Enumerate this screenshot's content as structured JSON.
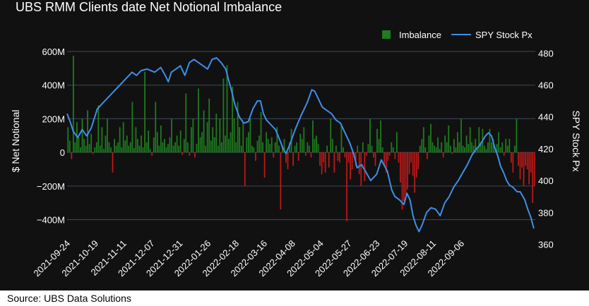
{
  "title": "UBS RMM Clients date Net Notional Imbalance",
  "source": "Source: UBS Data Solutions",
  "colors": {
    "background": "#111111",
    "grid": "#3c4a5c",
    "imbalance_pos": "#1e7d1e",
    "imbalance_neg": "#c01818",
    "spy": "#3d8fe8",
    "text": "#ffffff"
  },
  "chart_data": {
    "type": "bar",
    "xlabel": "",
    "ylabel": "$ Net Notional",
    "y2label": "SPY Stock Px",
    "ylim": [
      -490,
      600
    ],
    "y2lim": [
      366,
      481
    ],
    "yticks": [
      {
        "v": 600,
        "label": "600M"
      },
      {
        "v": 400,
        "label": "400M"
      },
      {
        "v": 200,
        "label": "200M"
      },
      {
        "v": 0,
        "label": "0"
      },
      {
        "v": -200,
        "label": "−200M"
      },
      {
        "v": -400,
        "label": "−400M"
      }
    ],
    "y2ticks": [
      480,
      460,
      440,
      420,
      400,
      380,
      360
    ],
    "xtick_labels": [
      "2021-09-24",
      "2021-10-19",
      "2021-11-11",
      "2021-12-07",
      "2021-12-31",
      "2022-01-26",
      "2022-02-18",
      "2022-03-16",
      "2022-04-08",
      "2022-05-04",
      "2022-05-27",
      "2022-06-23",
      "2022-07-19",
      "2022-08-11",
      "2022-09-06"
    ],
    "legend": {
      "position": "top-right",
      "entries": [
        "Imbalance",
        "SPY Stock Px"
      ]
    },
    "grid": true,
    "series": [
      {
        "name": "Imbalance",
        "type": "bar",
        "values": [
          150,
          70,
          -40,
          575,
          60,
          180,
          90,
          30,
          200,
          80,
          40,
          250,
          50,
          110,
          -10,
          30,
          60,
          280,
          40,
          150,
          20,
          100,
          200,
          60,
          30,
          -120,
          80,
          40,
          60,
          150,
          30,
          180,
          70,
          100,
          40,
          60,
          300,
          25,
          150,
          80,
          40,
          100,
          30,
          480,
          60,
          130,
          20,
          -20,
          90,
          300,
          120,
          40,
          160,
          60,
          80,
          30,
          50,
          90,
          200,
          40,
          60,
          100,
          40,
          130,
          -15,
          80,
          350,
          60,
          -20,
          150,
          200,
          -30,
          50,
          380,
          90,
          120,
          250,
          40,
          180,
          320,
          70,
          150,
          90,
          230,
          40,
          200,
          60,
          440,
          100,
          520,
          80,
          120,
          390,
          200,
          60,
          300,
          150,
          40,
          180,
          -200,
          90,
          120,
          200,
          40,
          30,
          -50,
          70,
          100,
          240,
          60,
          -150,
          120,
          80,
          50,
          90,
          -30,
          60,
          150,
          40,
          -340,
          30,
          80,
          -60,
          -100,
          60,
          140,
          -80,
          40,
          60,
          -50,
          110,
          80,
          150,
          -20,
          60,
          40,
          -30,
          190,
          80,
          100,
          50,
          -80,
          -130,
          -60,
          -120,
          40,
          -90,
          200,
          80,
          -120,
          40,
          -50,
          -60,
          170,
          30,
          -30,
          -410,
          -60,
          -160,
          -100,
          -30,
          -80,
          40,
          -130,
          -200,
          60,
          -170,
          -20,
          50,
          200,
          40,
          -30,
          -80,
          140,
          80,
          190,
          30,
          -80,
          -120,
          -50,
          -20,
          60,
          30,
          -40,
          120,
          -60,
          -180,
          -340,
          -290,
          -250,
          -220,
          -130,
          -60,
          -140,
          -240,
          -150,
          -100,
          40,
          80,
          150,
          30,
          -40,
          100,
          170,
          60,
          40,
          30,
          90,
          20,
          60,
          -30,
          100,
          60,
          160,
          40,
          -10,
          80,
          30,
          120,
          60,
          200,
          40,
          30,
          100,
          50,
          150,
          60,
          40,
          80,
          30,
          150,
          60,
          140,
          40,
          20,
          60,
          140,
          60,
          80,
          30,
          50,
          120,
          30,
          60,
          -20,
          80,
          40,
          80,
          -60,
          -120,
          40,
          200,
          -80,
          -160,
          -90,
          -200,
          -80,
          -100,
          -190,
          -120,
          -300,
          -200
        ]
      },
      {
        "name": "SPY Stock Px",
        "type": "line",
        "x_start": "2021-09-24",
        "x_end": "2022-09-30",
        "points": [
          [
            0,
            442
          ],
          [
            2,
            437
          ],
          [
            4,
            431
          ],
          [
            7,
            427
          ],
          [
            10,
            432
          ],
          [
            13,
            428
          ],
          [
            16,
            433
          ],
          [
            20,
            445
          ],
          [
            24,
            449
          ],
          [
            28,
            453
          ],
          [
            33,
            458
          ],
          [
            38,
            463
          ],
          [
            43,
            468
          ],
          [
            46,
            466
          ],
          [
            49,
            469
          ],
          [
            53,
            470
          ],
          [
            58,
            468
          ],
          [
            62,
            471
          ],
          [
            65,
            466
          ],
          [
            67,
            462
          ],
          [
            69,
            468
          ],
          [
            72,
            470
          ],
          [
            75,
            472
          ],
          [
            78,
            466
          ],
          [
            81,
            474
          ],
          [
            84,
            476
          ],
          [
            87,
            474
          ],
          [
            90,
            472
          ],
          [
            93,
            470
          ],
          [
            96,
            476
          ],
          [
            99,
            477
          ],
          [
            102,
            474
          ],
          [
            105,
            470
          ],
          [
            107,
            463
          ],
          [
            109,
            456
          ],
          [
            111,
            448
          ],
          [
            114,
            440
          ],
          [
            117,
            436
          ],
          [
            120,
            437
          ],
          [
            123,
            445
          ],
          [
            126,
            450
          ],
          [
            128,
            450
          ],
          [
            130,
            442
          ],
          [
            132,
            438
          ],
          [
            135,
            435
          ],
          [
            138,
            432
          ],
          [
            141,
            425
          ],
          [
            143,
            420
          ],
          [
            145,
            417
          ],
          [
            148,
            424
          ],
          [
            151,
            432
          ],
          [
            155,
            441
          ],
          [
            159,
            449
          ],
          [
            162,
            457
          ],
          [
            164,
            456
          ],
          [
            166,
            452
          ],
          [
            169,
            446
          ],
          [
            172,
            444
          ],
          [
            175,
            442
          ],
          [
            178,
            438
          ],
          [
            181,
            436
          ],
          [
            184,
            430
          ],
          [
            187,
            424
          ],
          [
            190,
            416
          ],
          [
            192,
            408
          ],
          [
            195,
            410
          ],
          [
            198,
            405
          ],
          [
            201,
            400
          ],
          [
            205,
            404
          ],
          [
            208,
            413
          ],
          [
            212,
            406
          ],
          [
            215,
            394
          ],
          [
            217,
            390
          ],
          [
            220,
            388
          ],
          [
            223,
            385
          ],
          [
            225,
            392
          ],
          [
            227,
            388
          ],
          [
            229,
            378
          ],
          [
            231,
            372
          ],
          [
            233,
            368
          ],
          [
            235,
            372
          ],
          [
            238,
            380
          ],
          [
            241,
            383
          ],
          [
            244,
            382
          ],
          [
            247,
            378
          ],
          [
            250,
            386
          ],
          [
            253,
            390
          ],
          [
            256,
            396
          ],
          [
            259,
            400
          ],
          [
            262,
            405
          ],
          [
            265,
            410
          ],
          [
            268,
            416
          ],
          [
            271,
            420
          ],
          [
            273,
            422
          ],
          [
            275,
            425
          ],
          [
            277,
            428
          ],
          [
            279,
            430
          ],
          [
            281,
            428
          ],
          [
            283,
            421
          ],
          [
            285,
            416
          ],
          [
            287,
            409
          ],
          [
            289,
            405
          ],
          [
            291,
            400
          ],
          [
            293,
            397
          ],
          [
            295,
            396
          ],
          [
            298,
            393
          ],
          [
            300,
            393
          ],
          [
            303,
            388
          ],
          [
            305,
            382
          ],
          [
            307,
            377
          ],
          [
            309,
            370
          ]
        ],
        "x_max": 310
      }
    ]
  }
}
